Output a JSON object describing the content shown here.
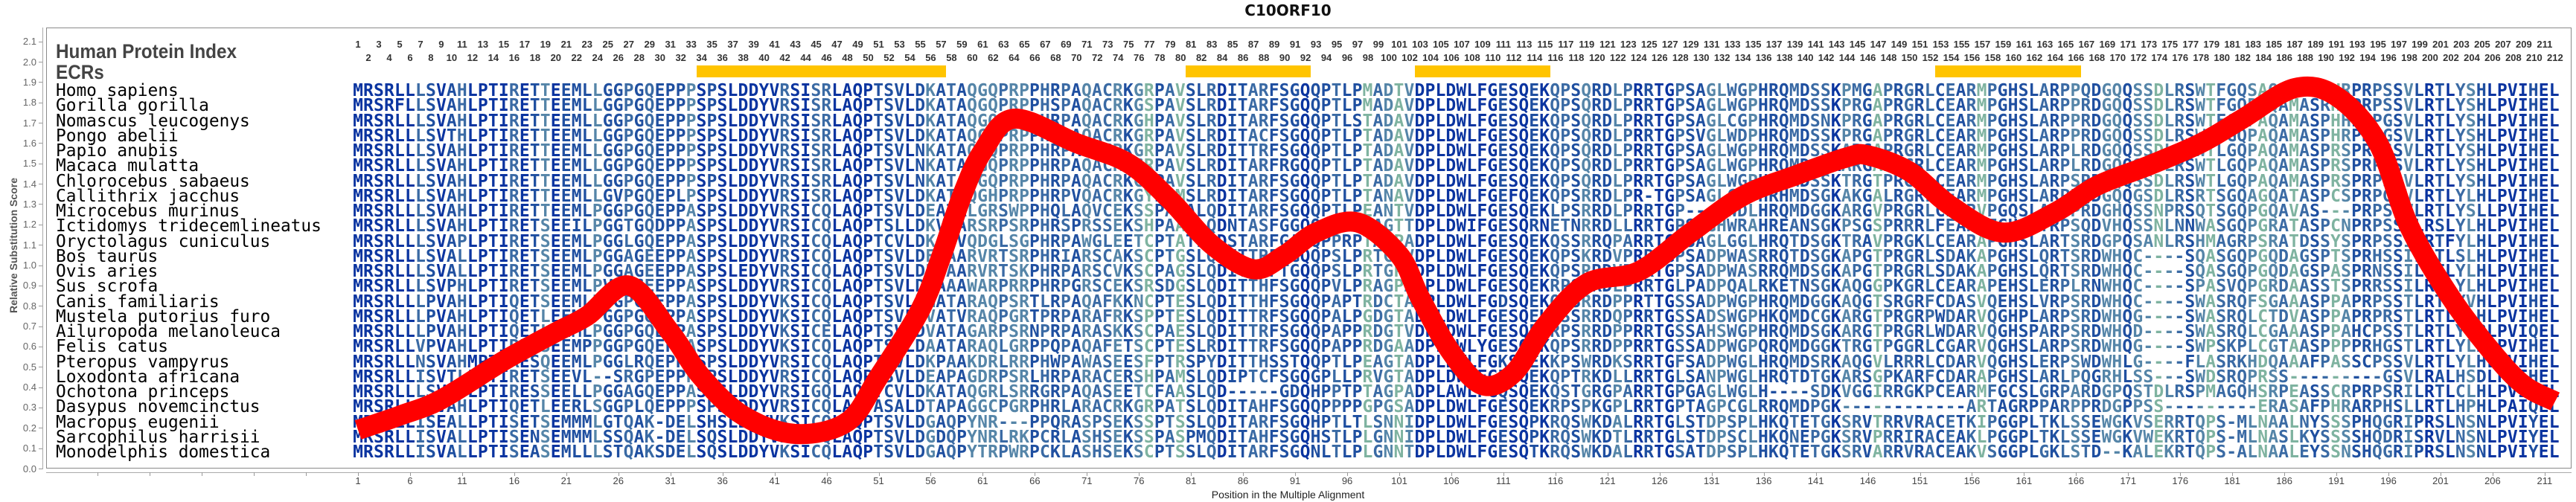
{
  "title": "C10ORF10",
  "header": {
    "human_protein_index_label": "Human Protein Index",
    "ecrs_label": "ECRs",
    "index_range": [
      1,
      212
    ]
  },
  "ecrs": [
    {
      "start": 34,
      "end": 57
    },
    {
      "start": 81,
      "end": 92
    },
    {
      "start": 103,
      "end": 115
    },
    {
      "start": 153,
      "end": 166
    }
  ],
  "species": [
    {
      "name": "Homo sapiens",
      "sequence": "MRSRLLLSVAHLPTIRETTEEMLLGGPGQEPPPSPSLDDYVRSISRLAQPTSVLDKATAQGQPRPPHRPAQACRKGRPAVSLRDITARFSGQQPTLPMADTVDPLDWLFGESQEKQPSQRDLPRRTGPSAGLWGPHRQMDSSKPMGAPRGRLCEARMPGHSLARPPQDGQQSSDLRSWTFGQSAQAMASRHRPRPSSVLRTLYSHLPVIHEL"
    },
    {
      "name": "Gorilla gorilla",
      "sequence": "MRSRFLLSVAHLPTIRETTEEMLLGGPGQEPPPSPSLDDYVRSISRLAQPTSVLDKATAQGQPRPPHSPAQACRKGSPAVSLRDITARFSGQQPTLPMADAVDPLDWLFGESQEKQPSQRDLPRRTGPSAGLWGPHRQMDSSKPRGAPRGRLCEARMPGHSLARPPRDGQQSSDLRSWTFGQPAQAMASRHRPRPSSVLRTLYSHLPVIHEL"
    },
    {
      "name": "Nomascus leucogenys",
      "sequence": "MRSRLLLSVAHLPTIRETTEEMLLGGPGQEPPPSPSLDDYVRSISRLAQPTSVLDKATAQGQPKPPHRPAQACRKGHPAVSLRDITARFSGQQPTLSTADAVDPLDWLFGESQEKQPSQRDLPRRTGPSAGLCGPHRQMDSNKPRGAPRGRLCEARMPGHSLARPPRDGQQSSDLRSWTFGQPAQAMASPHHPRPGSVLRTLYSHLPVIHEL"
    },
    {
      "name": "Pongo abelii",
      "sequence": "MRSRLLLSVTHLPTIRETTEEMLLGGPGQEPPPSPSLDDYVRSISRLAQPTSVLDKATAQGQPRPPHRPAQACRKGRPAVSLRDITACFSGQQPTLPTADAVDPLDWLFGESQEKQPSQRDLPRRTGPSVGLWDPHRQMDSSKPRGAPRGRLCEARMPGHSLARPPRDGQQSSDLRSWTFGQPAQAMASPHRPRPGSVLRTLYSHLPVIHEL"
    },
    {
      "name": "Papio anubis",
      "sequence": "MRSRLLLSVAHLPTIRETTEEMLLGGPGQEPPPSPSLDDYVRSISRLAQPTSVLNKATAQGQPRPPHRPAQACRKGRPAVSLRDITTRFSGQQPTLPTADAVDPLDWLFGESQEKQPSQRDLPRRTGPSAGLWGPHRQMDSSKARGAPRGRLCEARMPGHSLARPLRDGQQSSDLRSWTLGQPAQAMASPRSPRPSSVLRTLYSHLPVIHEL"
    },
    {
      "name": "Macaca mulatta",
      "sequence": "MRSRLLLSVAHLPTIRETTEEMLLGGPGQEPPPSPSLDDYVRSISRLAQPTSVLNKATAQGQPRPPHRPAQACRKGRPAVSLRDITARFRGQQPTLPTADAVDPLDWLFGESQEKQPSQRDLPRRTGPSAGLWGPHRQMDSSKARGAPRGRLCEARMPGHSLARPLRDGQQSSDLRSWTLGQPAQAMASPRSPRPSSVLRTLYSHLPVIHEL"
    },
    {
      "name": "Chlorocebus sabaeus",
      "sequence": "MRSRLLLSVAHLPTIRETTEEMLLGGPGQEPPPSPSLDDYVRSISRLAQPTSVLNKATAQGQPRPPHRPAQACRKGRPAVSLRDITARFSGQQPTLPTADAVDPLDWLFGESQEKQPSQRDLPRRTGPSAGLWGPHRQMDSSKTRGTPRGRLCEARMPGHSLARPSRDGQQSSDLRSWTLGQPAQAMASPRSPRPSSVLRTLYSHLPVIHEL"
    },
    {
      "name": "Callithrix jacchus",
      "sequence": "MRSRLLLSVAHLPTIRETTEEMLLGVPGQEPLPSPSLDDYVRSISRLAQPTSVLDKATAQGHPRPPHRPVQACRKGYPAMSLRDITARFSGQQPTLPTANAVDPLDWLFGEFQEKQPSRRDLPR-TGPSAGLCGPHRHMDSGKAKGALRGRLCEARMPGHSLARPPQDGQQGSDLRSRTSGQAGQATASPCSPRPGSVLRTLYLHLPVIHEL"
    },
    {
      "name": "Microcebus murinus",
      "sequence": "MRSRLLLSVAHLPTIRETTEEMLPGGPGQEPPASPSLDDYVRSICQLAQPTSVLDEATALGRSWPPHQLAQVCEKSSPAPALQDITARFSGQQPTLPEANTVDPLDWLFGESQEKLPSRRDLPRRTGP----WDLHRQMDGGKARGVPRGRLCEARVPGQSLAQPPRDGHQSSNPRSQTSGQPGQAVAS---PRPSSVLRTLYSLLPVIHEL"
    },
    {
      "name": "Ictidomys tridecemlineatus",
      "sequence": "MRSRLLLSVAHLPTIRETSEEILPGGTGQDPPASPSLDDYVRSICQLAQPTSLLDKVTARSRPSRPHRSPRSSEKSHPAASLQDNTASFGGQQSTLPSAGTTDPLDWIFGESQRNETNRRDLLRRTGPSAGHWRAHREANSGKPSGSPRRRLFEARAFGHSLTRPSQDVHQSSNLNNWASGQPGRATASPCNPRPSSILRSLYLHLPVIHEL"
    },
    {
      "name": "Oryctolagus cuniculus",
      "sequence": "MRSRLLLSVAPLPTIRETSEEMLPGGLGQEPPASPSLDDYVRSICQLAQPTCVLDKATVQDGLSGPHRPAWGLEETCPTATLQDSTARFGAQQPPRPTAGPADPLDWLFGESQEKQSSRRQPARRTGASAGLGGLHRQTDSGKTRAVPRGKLCEARAPGHSLARTSRDGPQSANLRSHMAGRPSRATDSSYSPRPSSILRTFYLHLPVIHEL"
    },
    {
      "name": "Bos taurus",
      "sequence": "MRSRLLLSVALLPTIRETSEEMLPGGAGEEPPASPSLDDYVRSICQLAQPTSVLDEAAARVRTSRPHRIARSCAKSCPTGSLQDITTRFTGQQPSLPRTGTVDPLDWLFGESQEKQPSKRDVPRRTGPSADPWASRRQTDSGKAPGTPRGRLSDAKAPGHSLQRTSRDWHQC----SQASGQPGQDAGSPTSPRHSSILRTLSLHLPVIHEL"
    },
    {
      "name": "Ovis aries",
      "sequence": "MRSRLLLSVALLPTIRETSEEMLPGGAGEEPPASPSLEDYVRSICQLAQPTSVLDETAARVRTSKPHRPARSCVKSCPAGSLQDITTRFTGQQPSLPRTGPVDPLDWLFGESQEKQPSRRDVPRRTGPSADPWASRRQMDSGKAPGTPRGRLSDAKAPGHSLQRTSRDWHQC----SQASGQPGQDAGSPASPRNSSILRTLYLHLPVIHEL"
    },
    {
      "name": "Sus scrofa",
      "sequence": "MRSRLLLSVPHLPTIRETSEEMLPVGPGEEPPASPSLDDYVRSICQLAQPTSVLDEAAAWARPRRPHRPGRSCEKSRSDGSLQDITTHFSGQQPVLPRAGPADPLDWLFGESQEKRPSRRDLPRRTGLPADPQALRKETNSGKAQGGPKGRLCEARAPEHSLERPLRNWHQC----SPASVQPGRDAASSTSPRRSSILRTLYLHLPVIHEL"
    },
    {
      "name": "Canis familiaris",
      "sequence": "MRSRLLLPVAHLPTIQETSEEMLPGGPGQEPPASPSLDDYVKSICQLAQPTSVLDMATARAQPSRTLRPAQAFKKNCPTESLQDITTHFSGQQPAPTRDCTADPLDWLFGDSQEKQPSRRDPPRTTGSSADPWGPHRQMDGGKAQGTSRGRFCDASVQEHSLVRPSRDWHQC----SWASRQFSGAAASPPAPRPSSTLRTLYVHLPVIHEL"
    },
    {
      "name": "Mustela putorius furo",
      "sequence": "MRSRLLLPVAHLPTIQETLEEMLPGGPGQEPPASPSLDDYVKSICQLAQPTSVLDVATVRAQPGRTPRPARAFRKSPPTESLQDITTRFSGQQPALPGDGTADPLDWLFGESQEKRSSRRDQPRRTGSSADSWGPHKQMDCGKARGTPRGRPWDARVQGHPLARPSRDWHQG----SWASRQLCTDVASPPAPRPRSTLRTLYLHLPVIHEL"
    },
    {
      "name": "Ailuropoda melanoleuca",
      "sequence": "MRSRLLLPVAHLPTIQETLEEMLPGGPGQEPPASPSLDDYVKSICELAQPTSVLDVATAGARPSRNPRPARASKKSCPAESLQDITTRFSGQQPAPPRDGTVDPLDWLFGESQEKRPSRRDPPRRTGSSAHSWGPHRQMDSGKARGTPRGRLWDARVQGHSPARPSRDWHQD----SWASRQLCGAAASPPAHCPSSTLRTLYLRLPVIQEL"
    },
    {
      "name": "Felis catus",
      "sequence": "MRSRLLVPVAHLPTIRETSEEMPPGGPGQEPLASPSLDDYVKSICQLAQPTSVLDAATARAQLGRPPQPAQAFETSCPTESLRDITTRFSGQQPAPPRDGAADPLDWLYGESQEKQPSRRDPPRRTGSSADPWGPQRQMDGGKTRGTPGGRLCGARVQGHSLARPSRDWHQG----SWPSKPLCGTAASPPPPRHGSTLRTLYLHLPVIHEL"
    },
    {
      "name": "Pteropus vampyrus",
      "sequence": "MRSRLLNSVAHMPTIRESQEEMLPGGLRQEPPTSPSLDDYVRSICQLAQPTSVLDKPAAKDRLRRPHWPAWASEESFPTRSPYDITTHSSTQQPTLPEAGTADPLDWLFGKSQEKKPSWRDKSRRTGFSADPWGLHRQMDSRKAQGVLRRRLCDARVQGHSLERPSWDWHLG----FLASRKHDQAAAFPASSCPSSVLRTLYLHLPVIHEL"
    },
    {
      "name": "Loxodonta africana",
      "sequence": "MRSRLLISVTLLPTIRETSEEVL--SRGPEPPPSPSLDDYVRSICQLAQPASVLDEAPAGDRPSRLHRPARACERSHPAMSLQDIPTCFSGQGPLLPRVGTADPLDWLFGESQEKQPTRKDLLRRTGLSANPWGLHRQTDTGKARSGPKARFCDARAPGHSLARLPQGRHLSS---SWDSRQPRSS---------GSVLRALHSDLPVIHEL"
    },
    {
      "name": "Ochotona princeps",
      "sequence": "MRSRLLLSVAPLPTIRESSEELLPGGAGQEPPASPSLDDYVRSIGQLAQPTCVLDKATAQGRLSRRGRPAQASEETCFAASLQD-----GDQHPPTPTAGPADPLAWLFGQSQEKQSTGRGPARRTGPGAGLWGLH----SDKVGGIRRGKPCEARMFGCSLGRPARDGPQSTDLRSPMAGQHSRPEASSCRPRPSRILRTLCLHLPVIHEL"
    },
    {
      "name": "Dasypus novemcinctus",
      "sequence": "MRSRLLISVAHLPTIQETLEERLSGGPLQEPPPSPSLDDYVRSICQLAQPASALDTAPAGGCPGRPHRLARACRKGRPATSLQDITAHFSGQQPPPPGPGSADPLDWLFGESQEKRPSPKGPLRRTGPTAGPCGLRRQMDPGK------------ARTAGRPPARPPRDGPPSS---------ERASAFPHRARPHSLLRTLHPHLPAIQEL"
    },
    {
      "name": "Macropus eugenii",
      "sequence": "MRSRLLISEALLPTISETSEMMMLGTQAK-DELSHSLDDYVKSICQLAQPTSVLDGAQPYNR---PPQRASPSEKSSPTSSLQDITARFSGQHPTLTLSNNIDPLDWLFGESQPKRQSWKDALRRTGLSTDPSPLHKQTETGKSRVTRRVRACETKIPGGPLTKLSSEWGKVSERRTQPS-MLNAALNYSSSPHQGRIPRSLNSNLPVIYEL"
    },
    {
      "name": "Sarcophilus harrisii",
      "sequence": "MRSRLLISVALLPTISENSEMMMLSSQAK-DELSQSLDDYVKSICQLAQPTSVLDGDQPYNRLRKPCRLASHSEKSSPASPMQDITAHFSGQHSTLPLGNNIDPLDWLFGESQPKRQSWKDTLRRTGLSTDPSCLHKQNEPGKSRVPRRIRACEAKLPGGPLTKLSSEWGKVWEKRTQPS-MLNASLKYSSSSHQDRISRVLNSNLPVIYEL"
    },
    {
      "name": "Monodelphis domestica",
      "sequence": "MRSRLLISVALLPTISEASEMLLLSTQAKSDELSQSLDDYVKSICQLAQPTSVLDGAQPYTRPWRPCKLASHSEKSCPTSSLQDITARFSGQNLTLPLGNNTDPLDWLFGESQTKRQSWKDALRRTGSATDPSPLHKQTETGKSRVARRVRACEAKVSGGPLGKLSTD--KALEKRTQPS-ALNAALEYSSNSHQGRIPRSLNSNLPVIYEL"
    }
  ],
  "colors": {
    "curve": "#ff0000",
    "ecr_bar": "#ffc400",
    "residue_conserved": "#0a34a0",
    "residue_high": "#1f4fa0",
    "residue_mid": "#3a6aa4",
    "residue_low": "#5585a8",
    "residue_variable": "#7fb3a0"
  },
  "chart_data": {
    "type": "line",
    "title": "C10ORF10",
    "xlabel": "Position in the Multiple Alignment",
    "ylabel": "Relative Substitution Score",
    "ylim": [
      0,
      2.1
    ],
    "yticks": [
      "0.0",
      "0.1",
      "0.2",
      "0.3",
      "0.4",
      "0.5",
      "0.6",
      "0.7",
      "0.8",
      "0.9",
      "1.0",
      "1.1",
      "1.2",
      "1.3",
      "1.4",
      "1.5",
      "1.6",
      "1.7",
      "1.8",
      "1.9",
      "2.0",
      "2.1"
    ],
    "xticks": [
      1,
      6,
      11,
      16,
      21,
      26,
      31,
      36,
      41,
      46,
      51,
      56,
      61,
      66,
      71,
      76,
      81,
      86,
      91,
      96,
      101,
      106,
      111,
      116,
      121,
      126,
      131,
      136,
      141,
      146,
      151,
      156,
      161,
      166,
      171,
      176,
      181,
      186,
      191,
      196,
      201,
      206,
      211
    ],
    "grid": false,
    "series": [
      {
        "x": [
          1,
          5,
          9,
          15,
          20,
          23,
          27,
          31,
          34,
          38,
          43,
          48,
          51,
          55,
          57,
          59,
          61,
          64,
          70,
          75,
          79,
          83,
          87,
          90,
          93,
          97,
          101,
          103,
          106,
          109,
          112,
          115,
          119,
          124,
          129,
          134,
          139,
          144,
          146,
          150,
          154,
          159,
          164,
          168,
          173,
          178,
          182,
          187,
          191,
          195,
          198,
          202,
          206,
          209,
          212
        ],
        "y": [
          0.19,
          0.26,
          0.34,
          0.53,
          0.67,
          0.75,
          0.9,
          0.67,
          0.45,
          0.26,
          0.17,
          0.23,
          0.45,
          0.78,
          1.04,
          1.34,
          1.56,
          1.72,
          1.6,
          1.5,
          1.32,
          1.1,
          0.98,
          1.05,
          1.16,
          1.21,
          1.05,
          0.84,
          0.57,
          0.41,
          0.47,
          0.7,
          0.91,
          0.97,
          1.16,
          1.34,
          1.44,
          1.53,
          1.54,
          1.46,
          1.29,
          1.16,
          1.26,
          1.39,
          1.49,
          1.6,
          1.72,
          1.87,
          1.83,
          1.6,
          1.19,
          0.84,
          0.57,
          0.41,
          0.33
        ]
      }
    ]
  }
}
